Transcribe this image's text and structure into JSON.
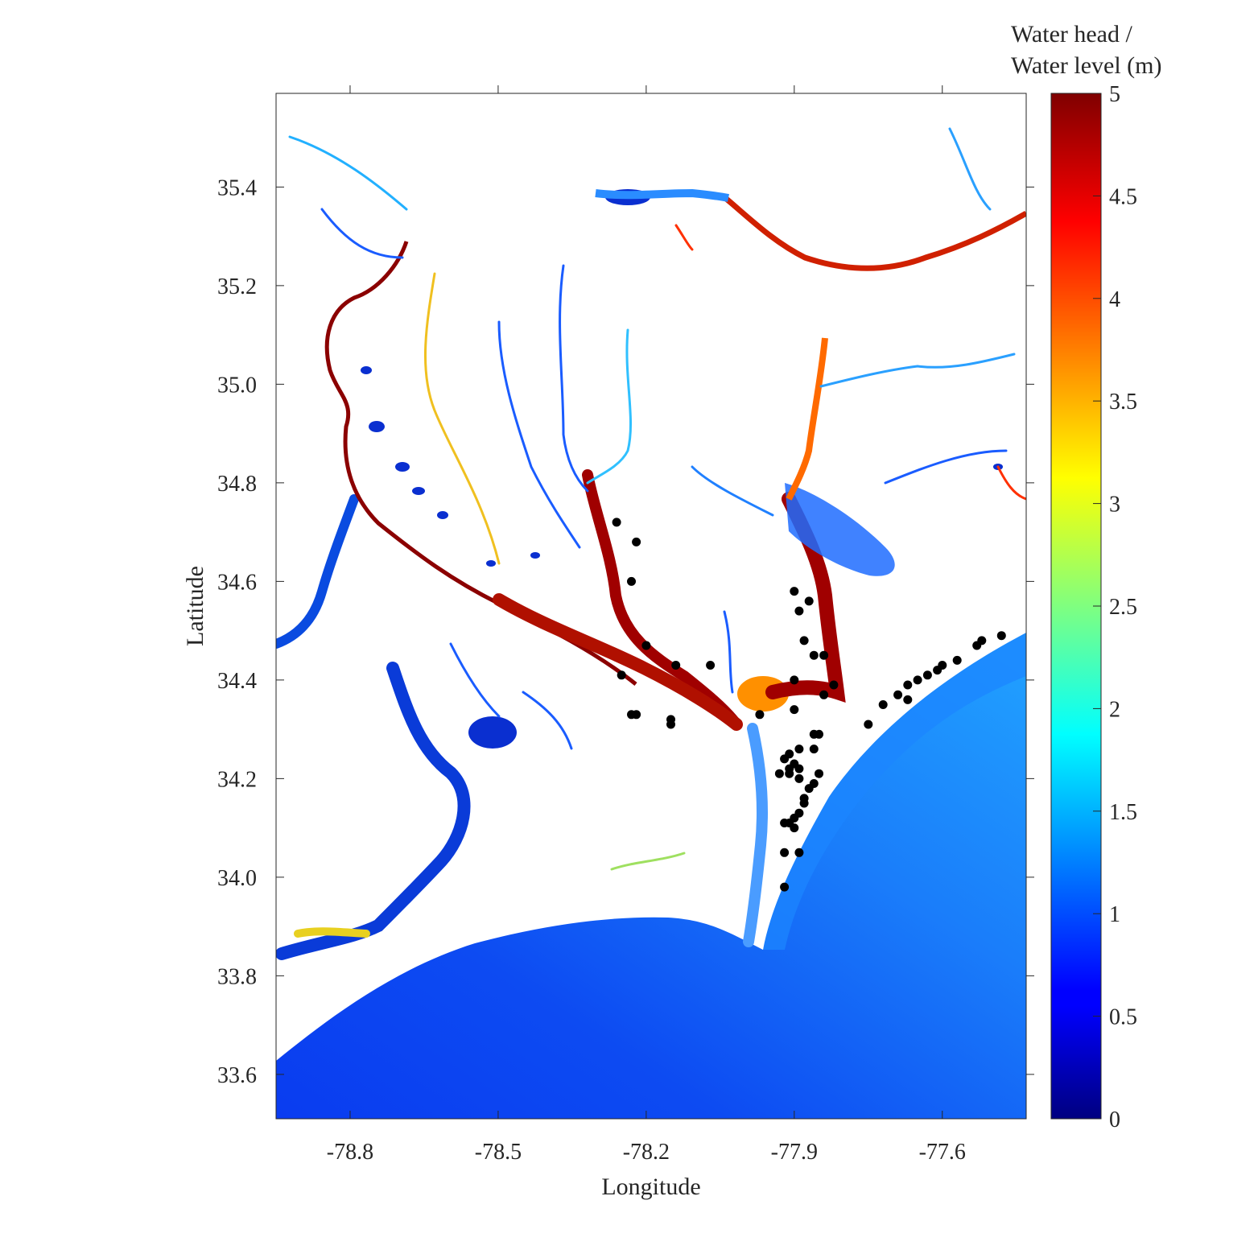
{
  "map": {
    "xlabel": "Longitude",
    "ylabel": "Latitude",
    "xlim": [
      -78.95,
      -77.43
    ],
    "ylim": [
      33.51,
      35.59
    ],
    "xticks": [
      -78.8,
      -78.5,
      -78.2,
      -77.9,
      -77.6
    ],
    "xtick_labels": [
      "-78.8",
      "-78.5",
      "-78.2",
      "-77.9",
      "-77.6"
    ],
    "yticks": [
      33.6,
      33.8,
      34.0,
      34.2,
      34.4,
      34.6,
      34.8,
      35.0,
      35.2,
      35.4
    ],
    "ytick_labels": [
      "33.6",
      "33.8",
      "34.0",
      "34.2",
      "34.4",
      "34.6",
      "34.8",
      "35.0",
      "35.2",
      "35.4"
    ],
    "colormap": "jet",
    "land_color": "#ffffff",
    "ocean_near_shore_color": "#1f8fff",
    "ocean_offshore_color": "#0a3cf0"
  },
  "colorbar": {
    "title_line1": "Water head /",
    "title_line2": "Water level (m)",
    "min": 0,
    "max": 5,
    "ticks": [
      0,
      0.5,
      1,
      1.5,
      2,
      2.5,
      3,
      3.5,
      4,
      4.5,
      5
    ],
    "tick_labels": [
      "0",
      "0.5",
      "1",
      "1.5",
      "2",
      "2.5",
      "3",
      "3.5",
      "4",
      "4.5",
      "5"
    ]
  },
  "chart_data": {
    "type": "scatter",
    "title": "",
    "xlabel": "Longitude",
    "ylabel": "Latitude",
    "xlim": [
      -78.95,
      -77.43
    ],
    "ylim": [
      33.51,
      35.59
    ],
    "grid": false,
    "marker_color": "#000000",
    "series": [
      {
        "name": "",
        "points": [
          [
            -78.26,
            34.72
          ],
          [
            -78.22,
            34.68
          ],
          [
            -78.23,
            34.6
          ],
          [
            -78.2,
            34.47
          ],
          [
            -78.25,
            34.41
          ],
          [
            -78.22,
            34.33
          ],
          [
            -78.23,
            34.33
          ],
          [
            -78.14,
            34.43
          ],
          [
            -78.15,
            34.32
          ],
          [
            -78.15,
            34.31
          ],
          [
            -78.07,
            34.43
          ],
          [
            -77.97,
            34.33
          ],
          [
            -77.9,
            34.58
          ],
          [
            -77.87,
            34.56
          ],
          [
            -77.89,
            34.54
          ],
          [
            -77.88,
            34.48
          ],
          [
            -77.9,
            34.4
          ],
          [
            -77.9,
            34.34
          ],
          [
            -77.86,
            34.45
          ],
          [
            -77.84,
            34.45
          ],
          [
            -77.82,
            34.39
          ],
          [
            -77.84,
            34.37
          ],
          [
            -77.86,
            34.29
          ],
          [
            -77.85,
            34.29
          ],
          [
            -77.86,
            34.26
          ],
          [
            -77.89,
            34.26
          ],
          [
            -77.91,
            34.25
          ],
          [
            -77.92,
            34.24
          ],
          [
            -77.9,
            34.23
          ],
          [
            -77.91,
            34.22
          ],
          [
            -77.89,
            34.22
          ],
          [
            -77.93,
            34.21
          ],
          [
            -77.91,
            34.21
          ],
          [
            -77.89,
            34.2
          ],
          [
            -77.85,
            34.21
          ],
          [
            -77.86,
            34.19
          ],
          [
            -77.87,
            34.18
          ],
          [
            -77.88,
            34.16
          ],
          [
            -77.88,
            34.15
          ],
          [
            -77.89,
            34.13
          ],
          [
            -77.9,
            34.12
          ],
          [
            -77.91,
            34.11
          ],
          [
            -77.92,
            34.11
          ],
          [
            -77.9,
            34.1
          ],
          [
            -77.92,
            34.05
          ],
          [
            -77.89,
            34.05
          ],
          [
            -77.92,
            33.98
          ],
          [
            -77.75,
            34.31
          ],
          [
            -77.72,
            34.35
          ],
          [
            -77.69,
            34.37
          ],
          [
            -77.67,
            34.36
          ],
          [
            -77.67,
            34.39
          ],
          [
            -77.65,
            34.4
          ],
          [
            -77.63,
            34.41
          ],
          [
            -77.61,
            34.42
          ],
          [
            -77.6,
            34.43
          ],
          [
            -77.57,
            34.44
          ],
          [
            -77.53,
            34.47
          ],
          [
            -77.52,
            34.48
          ],
          [
            -77.48,
            34.49
          ]
        ]
      }
    ]
  }
}
